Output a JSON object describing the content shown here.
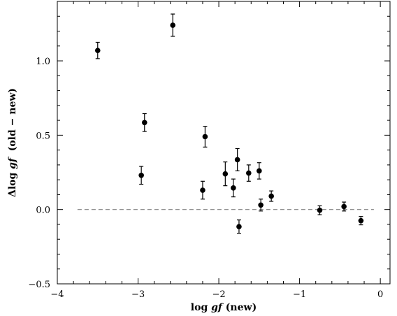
{
  "chart_data": {
    "type": "scatter",
    "title": "",
    "xlabel_parts": [
      "log ",
      "gf",
      " (new)"
    ],
    "ylabel_parts": [
      "Δlog ",
      "gf",
      "  (old − new)"
    ],
    "xlim": [
      -4,
      0.12
    ],
    "ylim": [
      -0.5,
      1.4
    ],
    "xticks_major": [
      -4,
      -3,
      -2,
      -1,
      0
    ],
    "xticks_major_labels": [
      "−4",
      "−3",
      "−2",
      "−1",
      "0"
    ],
    "xticks_minor_step": 0.2,
    "yticks_major": [
      -0.5,
      0.0,
      0.5,
      1.0
    ],
    "yticks_major_labels": [
      "−0.5",
      "0.0",
      "0.5",
      "1.0"
    ],
    "yticks_minor_step": 0.1,
    "grid": false,
    "reference_line": {
      "y": 0.0,
      "x_range": [
        -3.75,
        -0.08
      ],
      "style": "dashed",
      "color": "#808080"
    },
    "marker_color": "#000000",
    "points": [
      {
        "x": -3.5,
        "y": 1.07,
        "err": 0.055
      },
      {
        "x": -2.57,
        "y": 1.24,
        "err": 0.075
      },
      {
        "x": -2.92,
        "y": 0.585,
        "err": 0.06
      },
      {
        "x": -2.96,
        "y": 0.23,
        "err": 0.06
      },
      {
        "x": -2.17,
        "y": 0.49,
        "err": 0.07
      },
      {
        "x": -2.2,
        "y": 0.13,
        "err": 0.06
      },
      {
        "x": -1.92,
        "y": 0.24,
        "err": 0.08
      },
      {
        "x": -1.82,
        "y": 0.145,
        "err": 0.06
      },
      {
        "x": -1.77,
        "y": 0.335,
        "err": 0.075
      },
      {
        "x": -1.75,
        "y": -0.115,
        "err": 0.045
      },
      {
        "x": -1.63,
        "y": 0.245,
        "err": 0.055
      },
      {
        "x": -1.5,
        "y": 0.26,
        "err": 0.055
      },
      {
        "x": -1.48,
        "y": 0.03,
        "err": 0.04
      },
      {
        "x": -1.35,
        "y": 0.09,
        "err": 0.035
      },
      {
        "x": -0.75,
        "y": -0.005,
        "err": 0.03
      },
      {
        "x": -0.45,
        "y": 0.02,
        "err": 0.03
      },
      {
        "x": -0.24,
        "y": -0.075,
        "err": 0.028
      }
    ]
  }
}
